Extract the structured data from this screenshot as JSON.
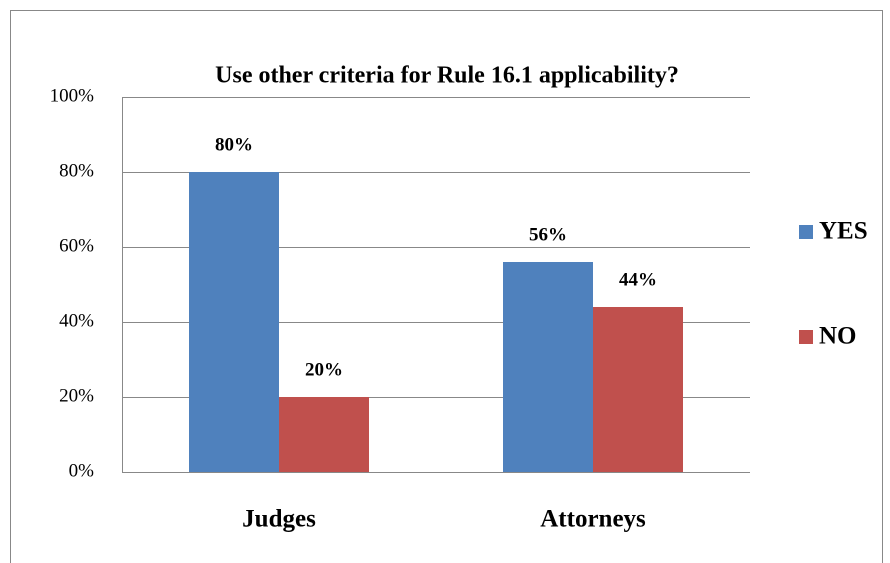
{
  "chart_data": {
    "type": "bar",
    "title": "Use other criteria for Rule 16.1 applicability?",
    "categories": [
      "Judges",
      "Attorneys"
    ],
    "series": [
      {
        "name": "YES",
        "color": "#4f81bd",
        "values": [
          80,
          56
        ],
        "value_labels": [
          "80%",
          "56%"
        ]
      },
      {
        "name": "NO",
        "color": "#c0504d",
        "values": [
          20,
          44
        ],
        "value_labels": [
          "20%",
          "44%"
        ]
      }
    ],
    "ylim": [
      0,
      100
    ],
    "yticks": [
      {
        "value": 0,
        "label": "0%"
      },
      {
        "value": 20,
        "label": "20%"
      },
      {
        "value": 40,
        "label": "40%"
      },
      {
        "value": 60,
        "label": "60%"
      },
      {
        "value": 80,
        "label": "80%"
      },
      {
        "value": 100,
        "label": "100%"
      }
    ],
    "grid": true,
    "legend": "right"
  }
}
